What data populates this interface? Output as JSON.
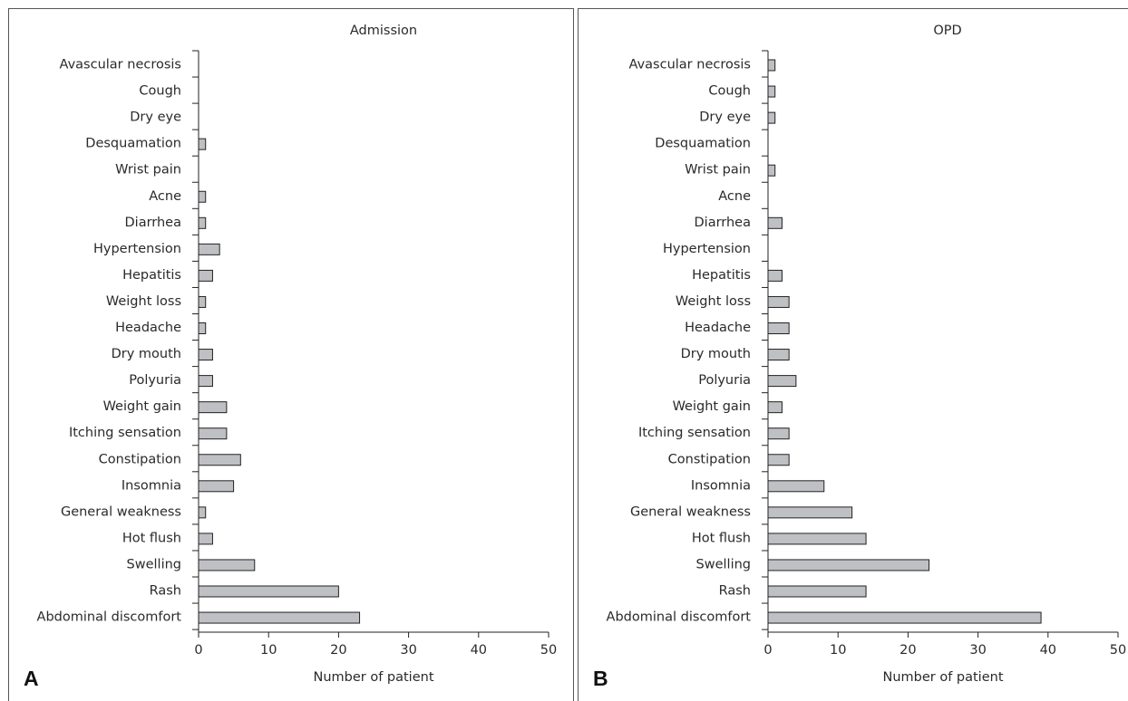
{
  "chart_data": [
    {
      "type": "bar",
      "orientation": "horizontal",
      "panel_label": "A",
      "title": "Admission",
      "xlabel": "Number of patient",
      "xlim": [
        0,
        50
      ],
      "xticks": [
        "0",
        "10",
        "20",
        "30",
        "40",
        "50"
      ],
      "categories": [
        "Avascular necrosis",
        "Cough",
        "Dry eye",
        "Desquamation",
        "Wrist pain",
        "Acne",
        "Diarrhea",
        "Hypertension",
        "Hepatitis",
        "Weight loss",
        "Headache",
        "Dry mouth",
        "Polyuria",
        "Weight gain",
        "Itching sensation",
        "Constipation",
        "Insomnia",
        "General weakness",
        "Hot flush",
        "Swelling",
        "Rash",
        "Abdominal discomfort"
      ],
      "values": [
        0,
        0,
        0,
        1,
        0,
        1,
        1,
        3,
        2,
        1,
        1,
        2,
        2,
        4,
        4,
        6,
        5,
        1,
        2,
        8,
        20,
        23
      ],
      "bar_color": "#bfc0c4"
    },
    {
      "type": "bar",
      "orientation": "horizontal",
      "panel_label": "B",
      "title": "OPD",
      "xlabel": "Number of patient",
      "xlim": [
        0,
        50
      ],
      "xticks": [
        "0",
        "10",
        "20",
        "30",
        "40",
        "50"
      ],
      "categories": [
        "Avascular necrosis",
        "Cough",
        "Dry eye",
        "Desquamation",
        "Wrist pain",
        "Acne",
        "Diarrhea",
        "Hypertension",
        "Hepatitis",
        "Weight loss",
        "Headache",
        "Dry mouth",
        "Polyuria",
        "Weight gain",
        "Itching sensation",
        "Constipation",
        "Insomnia",
        "General weakness",
        "Hot flush",
        "Swelling",
        "Rash",
        "Abdominal discomfort"
      ],
      "values": [
        1,
        1,
        1,
        0,
        1,
        0,
        2,
        0,
        2,
        3,
        3,
        3,
        4,
        2,
        3,
        3,
        8,
        12,
        14,
        23,
        14,
        39
      ],
      "bar_color": "#bfc0c4"
    }
  ]
}
